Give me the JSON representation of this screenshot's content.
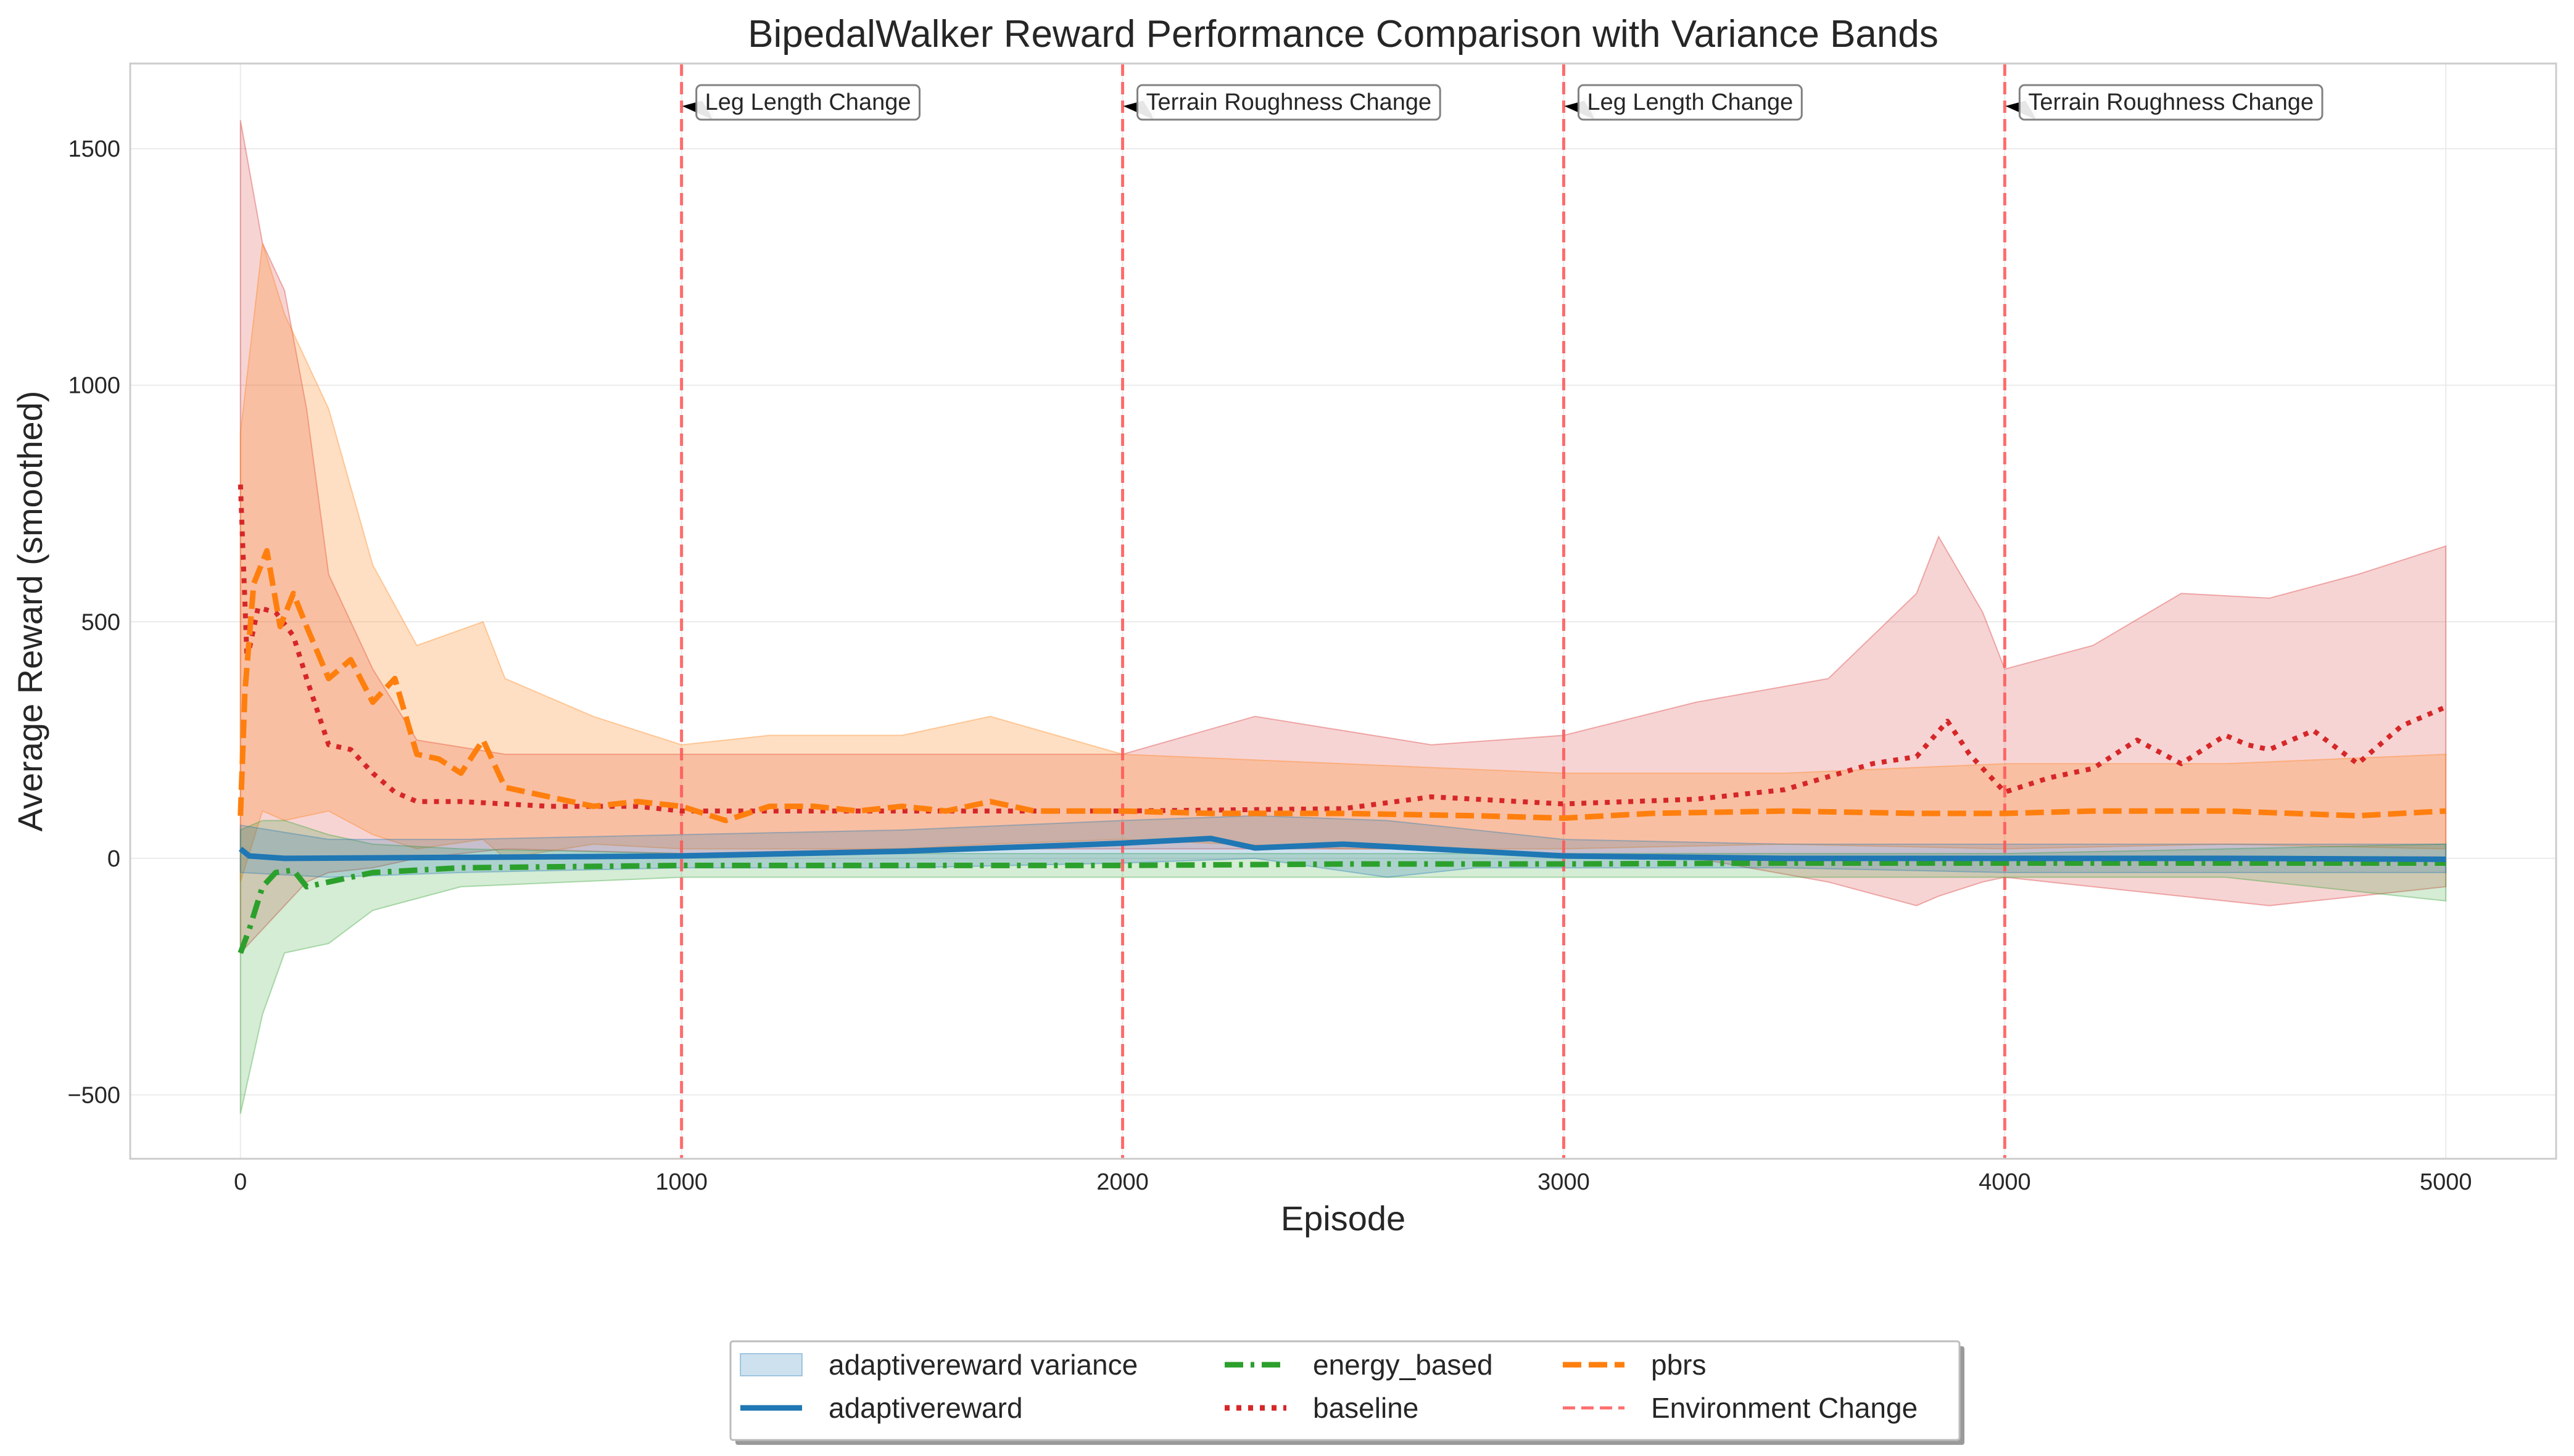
{
  "chart_data": {
    "type": "line",
    "title": "BipedalWalker Reward Performance Comparison with Variance Bands",
    "xlabel": "Episode",
    "ylabel": "Average Reward (smoothed)",
    "xlim": [
      -250,
      5250
    ],
    "ylim": [
      -635,
      1680
    ],
    "xticks": [
      0,
      1000,
      2000,
      3000,
      4000,
      5000
    ],
    "yticks": [
      -500,
      0,
      500,
      1000,
      1500
    ],
    "grid": true,
    "legend_position": "bottom-center",
    "environment_changes": [
      {
        "x": 1000,
        "label": "Leg Length Change"
      },
      {
        "x": 2000,
        "label": "Terrain Roughness Change"
      },
      {
        "x": 3000,
        "label": "Leg Length Change"
      },
      {
        "x": 4000,
        "label": "Terrain Roughness Change"
      }
    ],
    "annotation_y": 1590,
    "series": [
      {
        "name": "adaptivereward",
        "color": "#1f77b4",
        "style": "solid",
        "points": [
          [
            0,
            20
          ],
          [
            20,
            5
          ],
          [
            100,
            0
          ],
          [
            500,
            2
          ],
          [
            1000,
            5
          ],
          [
            1500,
            15
          ],
          [
            1800,
            25
          ],
          [
            2000,
            32
          ],
          [
            2200,
            42
          ],
          [
            2300,
            22
          ],
          [
            2500,
            30
          ],
          [
            2700,
            20
          ],
          [
            2900,
            10
          ],
          [
            3000,
            5
          ],
          [
            3500,
            0
          ],
          [
            4000,
            0
          ],
          [
            4500,
            0
          ],
          [
            5000,
            -2
          ]
        ],
        "band": [
          [
            0,
            -30,
            70
          ],
          [
            200,
            -40,
            40
          ],
          [
            500,
            -30,
            40
          ],
          [
            1000,
            -20,
            50
          ],
          [
            1500,
            -20,
            60
          ],
          [
            2000,
            -10,
            80
          ],
          [
            2300,
            0,
            90
          ],
          [
            2600,
            -40,
            80
          ],
          [
            2800,
            -20,
            60
          ],
          [
            3000,
            -20,
            40
          ],
          [
            3500,
            -20,
            30
          ],
          [
            4000,
            -30,
            30
          ],
          [
            5000,
            -30,
            30
          ]
        ]
      },
      {
        "name": "energy_based",
        "color": "#2ca02c",
        "style": "dashdot",
        "points": [
          [
            0,
            -200
          ],
          [
            20,
            -150
          ],
          [
            50,
            -60
          ],
          [
            80,
            -30
          ],
          [
            120,
            -25
          ],
          [
            150,
            -60
          ],
          [
            200,
            -50
          ],
          [
            300,
            -30
          ],
          [
            400,
            -25
          ],
          [
            500,
            -20
          ],
          [
            1000,
            -15
          ],
          [
            1500,
            -15
          ],
          [
            2000,
            -15
          ],
          [
            2500,
            -12
          ],
          [
            3000,
            -12
          ],
          [
            3500,
            -10
          ],
          [
            4000,
            -10
          ],
          [
            4500,
            -10
          ],
          [
            5000,
            -10
          ]
        ],
        "band": [
          [
            0,
            -540,
            60
          ],
          [
            50,
            -330,
            80
          ],
          [
            100,
            -200,
            80
          ],
          [
            200,
            -180,
            50
          ],
          [
            300,
            -110,
            30
          ],
          [
            500,
            -60,
            20
          ],
          [
            1000,
            -40,
            10
          ],
          [
            2000,
            -40,
            10
          ],
          [
            3000,
            -40,
            10
          ],
          [
            4000,
            -40,
            10
          ],
          [
            4500,
            -40,
            20
          ],
          [
            5000,
            -90,
            30
          ]
        ]
      },
      {
        "name": "baseline",
        "color": "#d62728",
        "style": "dotted",
        "points": [
          [
            0,
            790
          ],
          [
            15,
            420
          ],
          [
            40,
            530
          ],
          [
            80,
            520
          ],
          [
            120,
            470
          ],
          [
            150,
            380
          ],
          [
            200,
            240
          ],
          [
            250,
            230
          ],
          [
            300,
            180
          ],
          [
            350,
            140
          ],
          [
            400,
            120
          ],
          [
            500,
            120
          ],
          [
            700,
            110
          ],
          [
            900,
            110
          ],
          [
            1000,
            100
          ],
          [
            1200,
            100
          ],
          [
            1500,
            100
          ],
          [
            2000,
            100
          ],
          [
            2500,
            105
          ],
          [
            2700,
            130
          ],
          [
            3000,
            115
          ],
          [
            3300,
            125
          ],
          [
            3500,
            145
          ],
          [
            3700,
            200
          ],
          [
            3800,
            215
          ],
          [
            3870,
            290
          ],
          [
            3920,
            220
          ],
          [
            4000,
            140
          ],
          [
            4100,
            170
          ],
          [
            4200,
            190
          ],
          [
            4300,
            250
          ],
          [
            4400,
            200
          ],
          [
            4500,
            260
          ],
          [
            4550,
            240
          ],
          [
            4600,
            230
          ],
          [
            4700,
            270
          ],
          [
            4800,
            200
          ],
          [
            4900,
            280
          ],
          [
            4950,
            300
          ],
          [
            5000,
            320
          ]
        ],
        "band": [
          [
            0,
            -200,
            1560
          ],
          [
            50,
            -150,
            1300
          ],
          [
            100,
            -100,
            1200
          ],
          [
            150,
            -50,
            950
          ],
          [
            200,
            -30,
            600
          ],
          [
            300,
            -20,
            400
          ],
          [
            400,
            0,
            250
          ],
          [
            600,
            20,
            220
          ],
          [
            1000,
            10,
            220
          ],
          [
            1500,
            20,
            220
          ],
          [
            2000,
            20,
            220
          ],
          [
            2300,
            20,
            300
          ],
          [
            2700,
            20,
            240
          ],
          [
            3000,
            10,
            260
          ],
          [
            3300,
            0,
            330
          ],
          [
            3600,
            -50,
            380
          ],
          [
            3800,
            -100,
            560
          ],
          [
            3850,
            -80,
            680
          ],
          [
            3950,
            -50,
            520
          ],
          [
            4000,
            -40,
            400
          ],
          [
            4200,
            -60,
            450
          ],
          [
            4400,
            -80,
            560
          ],
          [
            4600,
            -100,
            550
          ],
          [
            4800,
            -80,
            600
          ],
          [
            5000,
            -60,
            660
          ]
        ]
      },
      {
        "name": "pbrs",
        "color": "#ff7f0e",
        "style": "dashed",
        "points": [
          [
            0,
            90
          ],
          [
            10,
            350
          ],
          [
            30,
            580
          ],
          [
            60,
            650
          ],
          [
            90,
            490
          ],
          [
            120,
            560
          ],
          [
            150,
            490
          ],
          [
            200,
            380
          ],
          [
            250,
            420
          ],
          [
            300,
            330
          ],
          [
            350,
            380
          ],
          [
            400,
            220
          ],
          [
            450,
            210
          ],
          [
            500,
            180
          ],
          [
            550,
            250
          ],
          [
            600,
            150
          ],
          [
            700,
            130
          ],
          [
            800,
            110
          ],
          [
            900,
            120
          ],
          [
            1000,
            110
          ],
          [
            1100,
            80
          ],
          [
            1200,
            110
          ],
          [
            1300,
            110
          ],
          [
            1400,
            100
          ],
          [
            1500,
            110
          ],
          [
            1600,
            100
          ],
          [
            1700,
            120
          ],
          [
            1800,
            100
          ],
          [
            2000,
            100
          ],
          [
            2200,
            95
          ],
          [
            2500,
            95
          ],
          [
            2800,
            90
          ],
          [
            3000,
            85
          ],
          [
            3200,
            95
          ],
          [
            3500,
            100
          ],
          [
            3800,
            95
          ],
          [
            4000,
            95
          ],
          [
            4200,
            100
          ],
          [
            4500,
            100
          ],
          [
            4800,
            90
          ],
          [
            5000,
            100
          ]
        ],
        "band": [
          [
            0,
            -50,
            900
          ],
          [
            50,
            100,
            1300
          ],
          [
            100,
            80,
            1150
          ],
          [
            200,
            100,
            950
          ],
          [
            300,
            50,
            620
          ],
          [
            400,
            20,
            450
          ],
          [
            550,
            40,
            500
          ],
          [
            600,
            0,
            380
          ],
          [
            800,
            30,
            300
          ],
          [
            1000,
            20,
            240
          ],
          [
            1200,
            20,
            260
          ],
          [
            1500,
            20,
            260
          ],
          [
            1700,
            30,
            300
          ],
          [
            2000,
            40,
            220
          ],
          [
            2500,
            20,
            200
          ],
          [
            3000,
            20,
            180
          ],
          [
            3500,
            30,
            180
          ],
          [
            4000,
            20,
            200
          ],
          [
            4500,
            30,
            200
          ],
          [
            5000,
            20,
            220
          ]
        ]
      }
    ],
    "legend": [
      {
        "label": "adaptivereward variance",
        "key": "band"
      },
      {
        "label": "energy_based",
        "key": "energy_based"
      },
      {
        "label": "pbrs",
        "key": "pbrs"
      },
      {
        "label": "adaptivereward",
        "key": "adaptivereward"
      },
      {
        "label": "baseline",
        "key": "baseline"
      },
      {
        "label": "Environment Change",
        "key": "envchange"
      }
    ]
  }
}
